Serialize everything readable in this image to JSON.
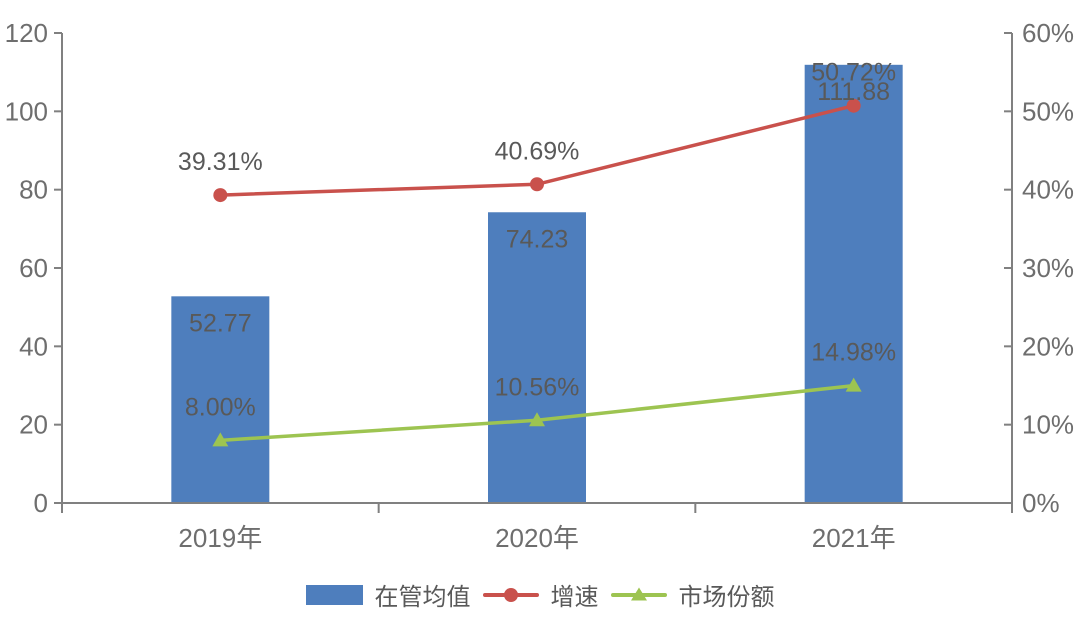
{
  "chart_data": {
    "type": "bar",
    "subtype": "combo-bar-line",
    "categories": [
      "2019年",
      "2020年",
      "2021年"
    ],
    "series": [
      {
        "name": "在管均值",
        "type": "bar",
        "axis": "left",
        "marker": "rect",
        "color": "#4e7ebd",
        "values": [
          52.77,
          74.23,
          111.88
        ],
        "labels": [
          "52.77",
          "74.23",
          "111.88"
        ]
      },
      {
        "name": "增速",
        "type": "line",
        "axis": "right",
        "marker": "circle",
        "color": "#c9514c",
        "values": [
          39.31,
          40.69,
          50.72
        ],
        "labels": [
          "39.31%",
          "40.69%",
          "50.72%"
        ]
      },
      {
        "name": "市场份额",
        "type": "line",
        "axis": "right",
        "marker": "triangle",
        "color": "#9dc451",
        "values": [
          8.0,
          10.56,
          14.98
        ],
        "labels": [
          "8.00%",
          "10.56%",
          "14.98%"
        ]
      }
    ],
    "left_axis": {
      "min": 0,
      "max": 120,
      "step": 20,
      "tick_labels": [
        "0",
        "20",
        "40",
        "60",
        "80",
        "100",
        "120"
      ]
    },
    "right_axis": {
      "min": 0,
      "max": 60,
      "step": 10,
      "tick_labels": [
        "0%",
        "10%",
        "20%",
        "30%",
        "40%",
        "50%",
        "60%"
      ]
    },
    "title": "",
    "xlabel": "",
    "ylabel": "",
    "grid": "off",
    "legend_position": "bottom",
    "colors": {
      "axis": "#808080",
      "tick_text": "#6e6e6e",
      "data_label_text": "#595959",
      "background": "#ffffff"
    }
  }
}
